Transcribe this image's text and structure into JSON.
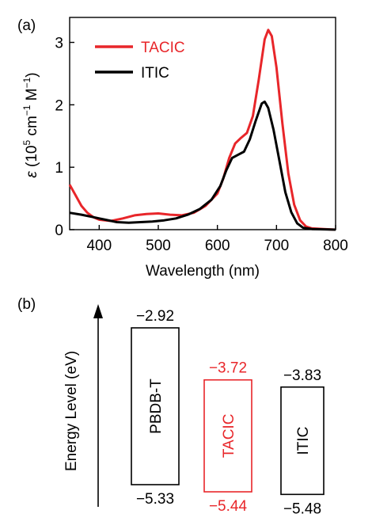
{
  "panels": {
    "a": "(a)",
    "b": "(b)"
  },
  "chart_data": [
    {
      "type": "line",
      "xlabel": "Wavelength (nm)",
      "ylabel_parts": [
        "ε",
        " (10",
        "5",
        " cm",
        "−1",
        " M",
        "−1",
        ")"
      ],
      "xlim": [
        350,
        800
      ],
      "ylim": [
        0,
        3.4
      ],
      "x_ticks": [
        400,
        500,
        600,
        700,
        800
      ],
      "y_ticks": [
        0,
        1,
        2,
        3
      ],
      "legend_position": "top-left",
      "series": [
        {
          "name": "TACIC",
          "color": "#e8262a",
          "points": [
            [
              350,
              0.72
            ],
            [
              360,
              0.55
            ],
            [
              370,
              0.38
            ],
            [
              380,
              0.27
            ],
            [
              390,
              0.2
            ],
            [
              400,
              0.16
            ],
            [
              420,
              0.14
            ],
            [
              440,
              0.18
            ],
            [
              460,
              0.23
            ],
            [
              480,
              0.25
            ],
            [
              500,
              0.26
            ],
            [
              520,
              0.24
            ],
            [
              540,
              0.23
            ],
            [
              560,
              0.27
            ],
            [
              580,
              0.38
            ],
            [
              600,
              0.58
            ],
            [
              610,
              0.82
            ],
            [
              620,
              1.15
            ],
            [
              630,
              1.38
            ],
            [
              640,
              1.47
            ],
            [
              650,
              1.55
            ],
            [
              660,
              1.82
            ],
            [
              670,
              2.4
            ],
            [
              680,
              3.05
            ],
            [
              686,
              3.2
            ],
            [
              692,
              3.1
            ],
            [
              700,
              2.6
            ],
            [
              710,
              1.7
            ],
            [
              720,
              0.9
            ],
            [
              730,
              0.4
            ],
            [
              740,
              0.15
            ],
            [
              750,
              0.05
            ],
            [
              760,
              0.02
            ],
            [
              780,
              0.01
            ],
            [
              800,
              0.0
            ]
          ]
        },
        {
          "name": "ITIC",
          "color": "#000000",
          "points": [
            [
              350,
              0.27
            ],
            [
              370,
              0.24
            ],
            [
              390,
              0.2
            ],
            [
              410,
              0.16
            ],
            [
              430,
              0.12
            ],
            [
              450,
              0.11
            ],
            [
              470,
              0.12
            ],
            [
              490,
              0.13
            ],
            [
              510,
              0.15
            ],
            [
              530,
              0.18
            ],
            [
              550,
              0.24
            ],
            [
              570,
              0.33
            ],
            [
              590,
              0.48
            ],
            [
              605,
              0.7
            ],
            [
              615,
              0.95
            ],
            [
              625,
              1.15
            ],
            [
              635,
              1.2
            ],
            [
              645,
              1.25
            ],
            [
              655,
              1.45
            ],
            [
              665,
              1.75
            ],
            [
              675,
              2.02
            ],
            [
              680,
              2.05
            ],
            [
              686,
              1.95
            ],
            [
              695,
              1.6
            ],
            [
              705,
              1.1
            ],
            [
              715,
              0.6
            ],
            [
              725,
              0.28
            ],
            [
              735,
              0.1
            ],
            [
              745,
              0.03
            ],
            [
              760,
              0.01
            ],
            [
              800,
              0.0
            ]
          ]
        }
      ]
    },
    {
      "type": "diagram",
      "ylabel": "Energy Level (eV)",
      "ylim": [
        -5.6,
        -2.7
      ],
      "bars": [
        {
          "name": "PBDB-T",
          "top": -2.92,
          "bottom": -5.33,
          "top_label": "−2.92",
          "bottom_label": "−5.33",
          "color": "#000000"
        },
        {
          "name": "TACIC",
          "top": -3.72,
          "bottom": -5.44,
          "top_label": "−3.72",
          "bottom_label": "−5.44",
          "color": "#e8262a"
        },
        {
          "name": "ITIC",
          "top": -3.83,
          "bottom": -5.48,
          "top_label": "−3.83",
          "bottom_label": "−5.48",
          "color": "#000000"
        }
      ]
    }
  ]
}
